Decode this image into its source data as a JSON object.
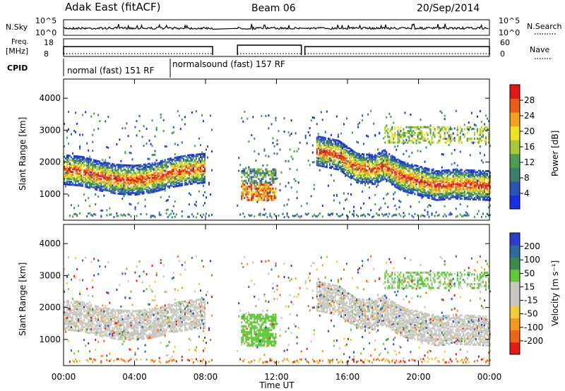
{
  "header": {
    "site": "Adak East (fitACF)",
    "beam": "Beam 06",
    "date": "20/Sep/2014"
  },
  "top_panel": {
    "nsky_label": "N.Sky",
    "nsearch_label": "N.Search",
    "log_ticks": [
      "10^5",
      "10^0"
    ],
    "freq_label_1": "Freq.",
    "freq_label_2": "[MHz]",
    "freq_ticks": [
      "18",
      "8"
    ],
    "nave_label": "Nave",
    "nave_ticks": [
      "60",
      "0"
    ],
    "cpid_label": "CPID",
    "cpid_modes": [
      "normal (fast) 151 RF",
      "normalsound (fast) 157 RF"
    ]
  },
  "colors": {
    "power": [
      "#1a2ee6",
      "#2b55b5",
      "#3c7d6b",
      "#48a050",
      "#a9c836",
      "#f0e21e",
      "#f2a31b",
      "#ec5c17",
      "#e41616"
    ],
    "velocity": [
      "#e41a13",
      "#f16417",
      "#f39a1c",
      "#f3cd36",
      "#c8c8c0",
      "#c8c8c0",
      "#60c938",
      "#3b8a47",
      "#2c6aa0",
      "#2a3fcc"
    ],
    "ground": "#c8c8c0"
  },
  "chart_data": [
    {
      "type": "heatmap",
      "title": "Power",
      "ylabel": "Slant Range [km]",
      "xlabel": "Time UT",
      "x_ticks": [
        "00:00",
        "04:00",
        "08:00",
        "12:00",
        "16:00",
        "20:00",
        "00:00"
      ],
      "y_ticks": [
        "1000",
        "2000",
        "3000",
        "4000"
      ],
      "xlim_hours": [
        0,
        24
      ],
      "ylim_km": [
        180,
        4600
      ],
      "colorbar": {
        "label": "Power [dB]",
        "ticks": [
          "28",
          "24",
          "20",
          "16",
          "12",
          "8",
          "4"
        ],
        "range_db": [
          0,
          32
        ]
      },
      "data_gaps_hours": [
        [
          8.4,
          9.7
        ],
        [
          13.4,
          13.6
        ]
      ],
      "main_echo_band": [
        {
          "t": 0.0,
          "km": 1750
        },
        {
          "t": 1.0,
          "km": 1700
        },
        {
          "t": 2.0,
          "km": 1550
        },
        {
          "t": 3.0,
          "km": 1450
        },
        {
          "t": 4.0,
          "km": 1420
        },
        {
          "t": 5.0,
          "km": 1500
        },
        {
          "t": 6.0,
          "km": 1650
        },
        {
          "t": 7.0,
          "km": 1750
        },
        {
          "t": 8.0,
          "km": 1800
        }
      ],
      "late_echo_band": [
        {
          "t": 14.2,
          "km": 2350
        },
        {
          "t": 15.5,
          "km": 2200
        },
        {
          "t": 16.5,
          "km": 1800
        },
        {
          "t": 17.5,
          "km": 1750
        },
        {
          "t": 18.0,
          "km": 1900
        },
        {
          "t": 19.0,
          "km": 1550
        },
        {
          "t": 20.0,
          "km": 1400
        },
        {
          "t": 21.0,
          "km": 1250
        },
        {
          "t": 22.0,
          "km": 1300
        },
        {
          "t": 24.0,
          "km": 1250
        }
      ]
    },
    {
      "type": "heatmap",
      "title": "Velocity",
      "ylabel": "Slant Range [km]",
      "xlabel": "Time UT",
      "x_ticks": [
        "00:00",
        "04:00",
        "08:00",
        "12:00",
        "16:00",
        "20:00",
        "00:00"
      ],
      "y_ticks": [
        "1000",
        "2000",
        "3000",
        "4000"
      ],
      "xlim_hours": [
        0,
        24
      ],
      "ylim_km": [
        180,
        4600
      ],
      "colorbar": {
        "label": "Velocity [m s⁻¹]",
        "ticks": [
          "200",
          "100",
          "50",
          "15",
          "-15",
          "-50",
          "-100",
          "-200"
        ],
        "range_ms": [
          -250,
          250
        ]
      },
      "ground_scatter": "grey"
    }
  ],
  "xlabel": "Time UT"
}
